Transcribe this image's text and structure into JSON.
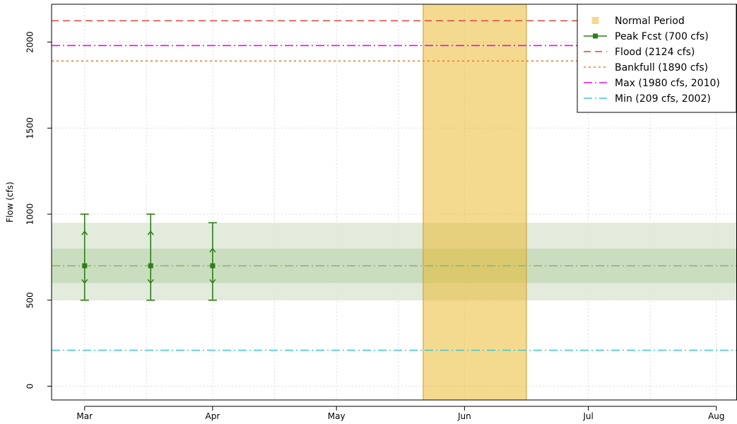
{
  "chart_data": {
    "type": "line",
    "ylabel": "Flow (cfs)",
    "xlabel": "",
    "ylim": [
      -80,
      2220
    ],
    "xlim": [
      "2015-02-21",
      "2015-08-06"
    ],
    "x_ticks": [
      {
        "date": "2015-03-01",
        "label": "Mar"
      },
      {
        "date": "2015-04-01",
        "label": "Apr"
      },
      {
        "date": "2015-05-01",
        "label": "May"
      },
      {
        "date": "2015-06-01",
        "label": "Jun"
      },
      {
        "date": "2015-07-01",
        "label": "Jul"
      },
      {
        "date": "2015-08-01",
        "label": "Aug"
      }
    ],
    "y_ticks": [
      0,
      500,
      1000,
      1500,
      2000
    ],
    "grid": true,
    "normal_period": {
      "start": "2015-05-22",
      "end": "2015-06-16",
      "color": "#f3d98a"
    },
    "bands": [
      {
        "ymin": 500,
        "ymax": 950,
        "color": "#dde8d6"
      },
      {
        "ymin": 600,
        "ymax": 800,
        "color": "#c5dab8"
      }
    ],
    "reference_lines": [
      {
        "name": "Flood (2124 cfs)",
        "value": 2124,
        "color": "#e0413b",
        "dash": "dashed"
      },
      {
        "name": "Max (1980 cfs, 2010)",
        "value": 1980,
        "color": "#e010e0",
        "dash": "dotdash"
      },
      {
        "name": "Bankfull (1890 cfs)",
        "value": 1890,
        "color": "#f07a2a",
        "dash": "dotted"
      },
      {
        "name": "Min (209 cfs, 2002)",
        "value": 209,
        "color": "#3ec7d0",
        "dash": "dotdash"
      }
    ],
    "median_line": {
      "value": 700,
      "color": "#8fb07a"
    },
    "series": [
      {
        "name": "Peak Fcst (700 cfs)",
        "color": "#2e7d1a",
        "points": [
          {
            "x": "2015-03-01",
            "y": 700,
            "low": 500,
            "high": 1000,
            "q_low": 600,
            "q_high": 900
          },
          {
            "x": "2015-03-17",
            "y": 700,
            "low": 500,
            "high": 1000,
            "q_low": 600,
            "q_high": 900
          },
          {
            "x": "2015-04-01",
            "y": 700,
            "low": 500,
            "high": 950,
            "q_low": 600,
            "q_high": 800
          }
        ]
      }
    ],
    "legend": {
      "position": "top-right",
      "entries": [
        {
          "label": "Normal Period",
          "kind": "box",
          "color": "#f3d98a"
        },
        {
          "label": "Peak Fcst (700 cfs)",
          "kind": "line-point",
          "color": "#2e7d1a"
        },
        {
          "label": "Flood (2124 cfs)",
          "kind": "dashed",
          "color": "#e0413b"
        },
        {
          "label": "Bankfull (1890 cfs)",
          "kind": "dotted",
          "color": "#f07a2a"
        },
        {
          "label": "Max (1980 cfs, 2010)",
          "kind": "dotdash",
          "color": "#e010e0"
        },
        {
          "label": "Min (209 cfs, 2002)",
          "kind": "dotdash",
          "color": "#3ec7d0"
        }
      ]
    }
  }
}
